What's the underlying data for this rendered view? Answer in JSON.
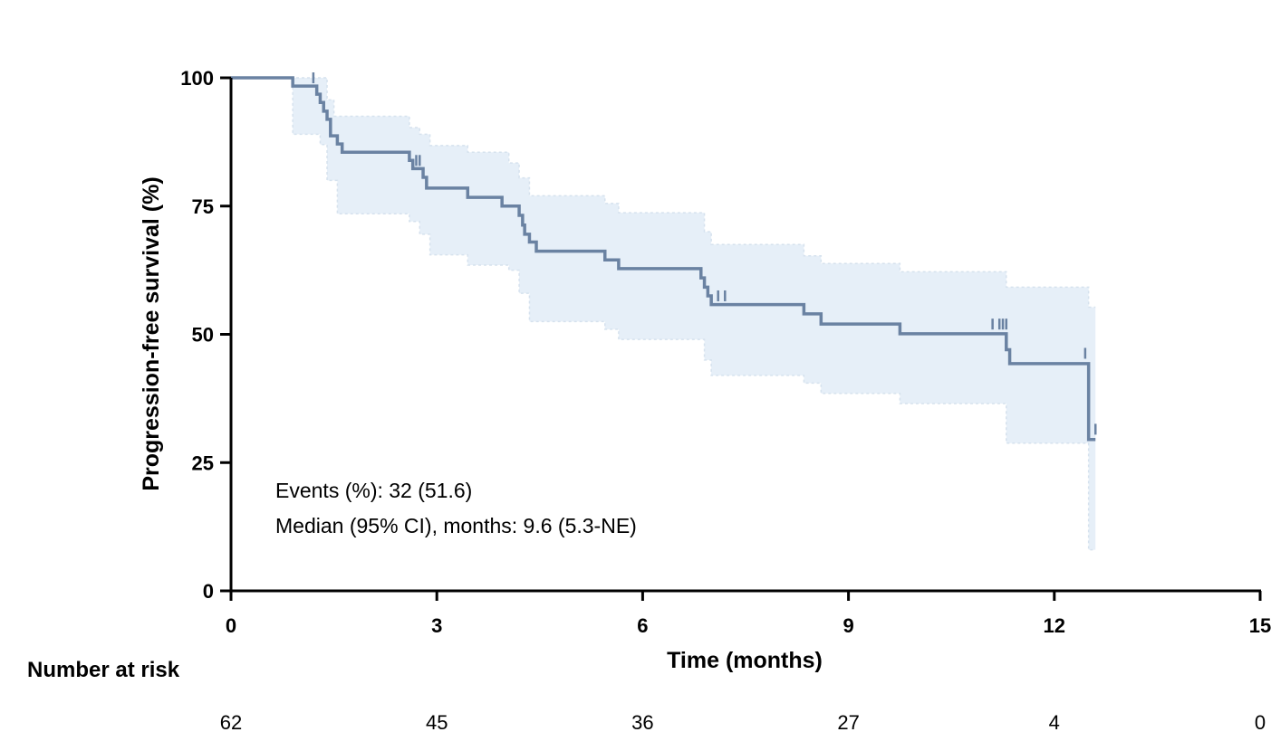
{
  "chart_data": {
    "type": "line",
    "subtype": "kaplan-meier",
    "title": "",
    "xlabel": "Time (months)",
    "ylabel": "Progression-free survival (%)",
    "xlim": [
      0,
      15
    ],
    "ylim": [
      0,
      100
    ],
    "x_ticks": [
      "0",
      "3",
      "6",
      "9",
      "12",
      "15"
    ],
    "y_ticks": [
      "0",
      "25",
      "50",
      "75",
      "100"
    ],
    "grid": false,
    "colors": {
      "line": "#6a82a2",
      "ci_band": "#e6eff8"
    },
    "series": [
      {
        "name": "Progression-free survival",
        "steps": [
          [
            0,
            100
          ],
          [
            0.9,
            98.4
          ],
          [
            1.25,
            96.8
          ],
          [
            1.3,
            95.2
          ],
          [
            1.35,
            93.5
          ],
          [
            1.4,
            91.9
          ],
          [
            1.45,
            88.7
          ],
          [
            1.55,
            87.1
          ],
          [
            1.62,
            85.5
          ],
          [
            2.6,
            83.9
          ],
          [
            2.65,
            82.3
          ],
          [
            2.8,
            80.6
          ],
          [
            2.85,
            78.5
          ],
          [
            3.45,
            76.7
          ],
          [
            3.95,
            75.0
          ],
          [
            4.2,
            73.2
          ],
          [
            4.25,
            71.3
          ],
          [
            4.28,
            69.5
          ],
          [
            4.35,
            68.0
          ],
          [
            4.45,
            66.2
          ],
          [
            5.45,
            64.5
          ],
          [
            5.65,
            62.8
          ],
          [
            6.85,
            61.0
          ],
          [
            6.9,
            59.2
          ],
          [
            6.95,
            57.5
          ],
          [
            7.0,
            55.8
          ],
          [
            8.35,
            54.0
          ],
          [
            8.6,
            52.0
          ],
          [
            9.75,
            50.1
          ],
          [
            11.3,
            47.0
          ],
          [
            11.35,
            44.3
          ],
          [
            12.5,
            29.5
          ],
          [
            12.6,
            29.5
          ]
        ],
        "censored": [
          [
            1.2,
            100
          ],
          [
            2.7,
            83.9
          ],
          [
            2.75,
            83.9
          ],
          [
            7.1,
            57.5
          ],
          [
            7.2,
            57.5
          ],
          [
            11.1,
            52.0
          ],
          [
            11.2,
            52.0
          ],
          [
            11.25,
            52.0
          ],
          [
            11.3,
            52.0
          ],
          [
            12.45,
            46.3
          ],
          [
            12.6,
            31.5
          ]
        ],
        "ci_upper": [
          [
            0,
            100
          ],
          [
            0.9,
            100
          ],
          [
            1.3,
            100
          ],
          [
            1.4,
            95.7
          ],
          [
            1.5,
            92.5
          ],
          [
            2.6,
            90.3
          ],
          [
            2.75,
            89.0
          ],
          [
            2.9,
            86.8
          ],
          [
            3.45,
            85.5
          ],
          [
            4.05,
            83.4
          ],
          [
            4.2,
            80.5
          ],
          [
            4.35,
            77.0
          ],
          [
            5.45,
            75.5
          ],
          [
            5.65,
            73.7
          ],
          [
            6.9,
            70.0
          ],
          [
            7.0,
            67.5
          ],
          [
            8.35,
            65.3
          ],
          [
            8.6,
            63.8
          ],
          [
            9.75,
            62.2
          ],
          [
            11.3,
            59.2
          ],
          [
            12.5,
            55.3
          ],
          [
            12.6,
            55.3
          ]
        ],
        "ci_lower": [
          [
            0,
            100
          ],
          [
            0.9,
            89.0
          ],
          [
            1.3,
            87.0
          ],
          [
            1.4,
            80.0
          ],
          [
            1.55,
            73.5
          ],
          [
            2.6,
            72.0
          ],
          [
            2.75,
            69.5
          ],
          [
            2.9,
            65.5
          ],
          [
            3.45,
            63.5
          ],
          [
            4.05,
            62.5
          ],
          [
            4.2,
            58.0
          ],
          [
            4.35,
            52.5
          ],
          [
            5.45,
            51.0
          ],
          [
            5.65,
            49.0
          ],
          [
            6.9,
            45.0
          ],
          [
            7.0,
            42.0
          ],
          [
            8.35,
            40.5
          ],
          [
            8.6,
            38.5
          ],
          [
            9.75,
            36.5
          ],
          [
            11.3,
            28.8
          ],
          [
            12.5,
            8.0
          ],
          [
            12.6,
            8.0
          ]
        ]
      }
    ],
    "annotations": [
      "Events (%): 32 (51.6)",
      "Median (95% CI), months: 9.6 (5.3-NE)"
    ],
    "risk_table": {
      "title": "Number at risk",
      "values": [
        "62",
        "45",
        "36",
        "27",
        "4",
        "0"
      ]
    }
  }
}
